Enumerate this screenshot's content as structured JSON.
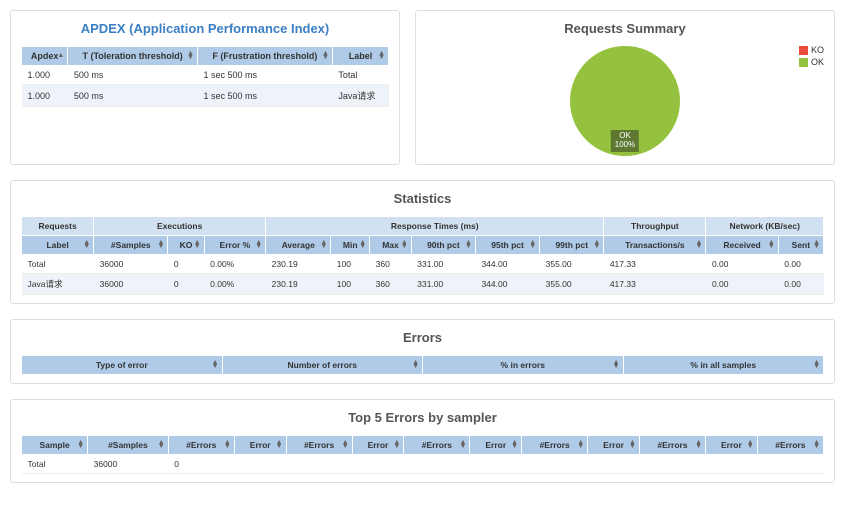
{
  "colors": {
    "header_bg": "#b0cbe8",
    "group_bg": "#d2e1f1",
    "alt_row": "#eef3f9",
    "title_blue": "#3b7fc4",
    "ok_color": "#94c23e",
    "ko_color": "#e84c3d"
  },
  "apdex": {
    "title": "APDEX (Application Performance Index)",
    "columns": [
      "Apdex",
      "T (Toleration threshold)",
      "F (Frustration threshold)",
      "Label"
    ],
    "rows": [
      {
        "apdex": "1.000",
        "t": "500 ms",
        "f": "1 sec 500 ms",
        "label": "Total"
      },
      {
        "apdex": "1.000",
        "t": "500 ms",
        "f": "1 sec 500 ms",
        "label": "Java请求"
      }
    ]
  },
  "summary": {
    "title": "Requests Summary",
    "legend": [
      {
        "label": "KO",
        "color": "#e84c3d"
      },
      {
        "label": "OK",
        "color": "#94c23e"
      }
    ],
    "pie": {
      "ok_pct": 100,
      "ko_pct": 0,
      "slice_label_line1": "OK",
      "slice_label_line2": "100%"
    }
  },
  "statistics": {
    "title": "Statistics",
    "groups": [
      {
        "label": "Requests",
        "span": 1
      },
      {
        "label": "Executions",
        "span": 3
      },
      {
        "label": "Response Times (ms)",
        "span": 6
      },
      {
        "label": "Throughput",
        "span": 1
      },
      {
        "label": "Network (KB/sec)",
        "span": 2
      }
    ],
    "columns": [
      "Label",
      "#Samples",
      "KO",
      "Error %",
      "Average",
      "Min",
      "Max",
      "90th pct",
      "95th pct",
      "99th pct",
      "Transactions/s",
      "Received",
      "Sent"
    ],
    "rows": [
      {
        "cells": [
          "Total",
          "36000",
          "0",
          "0.00%",
          "230.19",
          "100",
          "360",
          "331.00",
          "344.00",
          "355.00",
          "417.33",
          "0.00",
          "0.00"
        ]
      },
      {
        "cells": [
          "Java请求",
          "36000",
          "0",
          "0.00%",
          "230.19",
          "100",
          "360",
          "331.00",
          "344.00",
          "355.00",
          "417.33",
          "0.00",
          "0.00"
        ]
      }
    ]
  },
  "errors": {
    "title": "Errors",
    "columns": [
      "Type of error",
      "Number of errors",
      "% in errors",
      "% in all samples"
    ],
    "rows": []
  },
  "top5": {
    "title": "Top 5 Errors by sampler",
    "columns": [
      "Sample",
      "#Samples",
      "#Errors",
      "Error",
      "#Errors",
      "Error",
      "#Errors",
      "Error",
      "#Errors",
      "Error",
      "#Errors",
      "Error",
      "#Errors"
    ],
    "rows": [
      {
        "cells": [
          "Total",
          "36000",
          "0",
          "",
          "",
          "",
          "",
          "",
          "",
          "",
          "",
          "",
          ""
        ]
      }
    ]
  }
}
